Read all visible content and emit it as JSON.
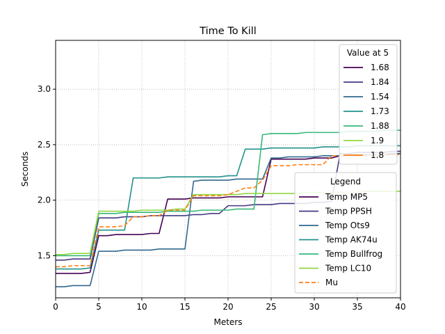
{
  "chart_data": {
    "type": "line",
    "title": "Time To Kill",
    "xlabel": "Meters",
    "ylabel": "Seconds",
    "xlim": [
      0,
      40
    ],
    "ylim": [
      1.12,
      3.44
    ],
    "xticks": [
      0,
      5,
      10,
      15,
      20,
      25,
      30,
      35,
      40
    ],
    "yticks": [
      1.5,
      2.0,
      2.5,
      3.0
    ],
    "ytick_labels": [
      "1.5",
      "2.0",
      "2.5",
      "3.0"
    ],
    "grid": true,
    "x": [
      0,
      1,
      2,
      3,
      4,
      5,
      6,
      7,
      8,
      9,
      10,
      11,
      12,
      13,
      14,
      15,
      16,
      17,
      18,
      19,
      20,
      21,
      22,
      23,
      24,
      25,
      26,
      27,
      28,
      29,
      30,
      31,
      32,
      33,
      34,
      35,
      36,
      37,
      38,
      39,
      40
    ],
    "series": [
      {
        "name": "Temp MP5",
        "color": "#440154",
        "dash": "solid",
        "values": [
          1.34,
          1.34,
          1.34,
          1.34,
          1.35,
          1.68,
          1.68,
          1.69,
          1.69,
          1.69,
          1.69,
          1.7,
          1.7,
          2.01,
          2.01,
          2.01,
          2.02,
          2.02,
          2.02,
          2.02,
          2.03,
          2.03,
          2.03,
          2.03,
          2.03,
          2.37,
          2.37,
          2.37,
          2.37,
          2.37,
          2.38,
          2.38,
          2.38,
          2.4,
          2.4,
          2.4,
          2.41,
          2.41,
          2.41,
          2.42,
          2.42
        ]
      },
      {
        "name": "Temp PPSH",
        "color": "#443983",
        "dash": "solid",
        "values": [
          1.46,
          1.46,
          1.47,
          1.47,
          1.47,
          1.84,
          1.84,
          1.84,
          1.85,
          1.85,
          1.85,
          1.86,
          1.86,
          1.86,
          1.86,
          1.86,
          1.87,
          1.87,
          1.88,
          1.88,
          1.95,
          1.95,
          1.95,
          1.96,
          1.96,
          1.96,
          1.97,
          1.97,
          1.97,
          1.97,
          1.98,
          1.98,
          1.99,
          2.42,
          2.42,
          2.43,
          2.43,
          2.43,
          2.43,
          2.44,
          2.44
        ]
      },
      {
        "name": "Temp Ots9",
        "color": "#31688e",
        "dash": "solid",
        "values": [
          1.22,
          1.22,
          1.23,
          1.23,
          1.23,
          1.54,
          1.54,
          1.54,
          1.55,
          1.55,
          1.55,
          1.55,
          1.56,
          1.56,
          1.56,
          1.56,
          2.17,
          2.18,
          2.18,
          2.18,
          2.18,
          2.19,
          2.19,
          2.19,
          2.19,
          2.38,
          2.38,
          2.39,
          2.39,
          2.39,
          2.39,
          2.4,
          2.4,
          2.4,
          2.41,
          2.41,
          2.41,
          2.41,
          2.41,
          2.41,
          2.42
        ]
      },
      {
        "name": "Temp AK74u",
        "color": "#21918c",
        "dash": "solid",
        "values": [
          1.38,
          1.38,
          1.38,
          1.38,
          1.39,
          1.73,
          1.73,
          1.73,
          1.73,
          2.2,
          2.2,
          2.2,
          2.2,
          2.21,
          2.21,
          2.21,
          2.21,
          2.21,
          2.21,
          2.21,
          2.22,
          2.22,
          2.46,
          2.46,
          2.46,
          2.47,
          2.47,
          2.47,
          2.47,
          2.47,
          2.47,
          2.48,
          2.48,
          2.48,
          2.48,
          2.49,
          2.49,
          2.49,
          2.49,
          2.49,
          2.49
        ]
      },
      {
        "name": "Temp Bullfrog",
        "color": "#35b779",
        "dash": "solid",
        "values": [
          1.5,
          1.5,
          1.5,
          1.5,
          1.5,
          1.88,
          1.88,
          1.88,
          1.89,
          1.89,
          1.89,
          1.89,
          1.89,
          1.9,
          1.9,
          1.9,
          1.9,
          1.91,
          1.91,
          1.91,
          1.91,
          1.92,
          1.92,
          1.92,
          2.59,
          2.6,
          2.6,
          2.6,
          2.6,
          2.61,
          2.61,
          2.61,
          2.61,
          2.61,
          2.62,
          2.62,
          2.62,
          2.62,
          2.63,
          2.63,
          2.63
        ]
      },
      {
        "name": "Temp LC10",
        "color": "#90d743",
        "dash": "solid",
        "values": [
          1.51,
          1.51,
          1.52,
          1.52,
          1.52,
          1.9,
          1.9,
          1.9,
          1.9,
          1.9,
          1.91,
          1.91,
          1.91,
          1.91,
          1.92,
          1.92,
          2.05,
          2.05,
          2.05,
          2.05,
          2.05,
          2.05,
          2.06,
          2.06,
          2.06,
          2.06,
          2.06,
          2.06,
          2.06,
          2.07,
          2.07,
          2.07,
          2.07,
          2.07,
          2.07,
          2.07,
          2.08,
          2.08,
          2.08,
          2.08,
          2.08
        ]
      },
      {
        "name": "Mu",
        "color": "#ff7f0e",
        "dash": "dashed",
        "values": [
          1.4,
          1.4,
          1.41,
          1.41,
          1.41,
          1.76,
          1.76,
          1.76,
          1.77,
          1.85,
          1.85,
          1.86,
          1.86,
          1.91,
          1.91,
          1.91,
          2.04,
          2.04,
          2.04,
          2.04,
          2.05,
          2.08,
          2.11,
          2.11,
          2.18,
          2.31,
          2.31,
          2.31,
          2.32,
          2.32,
          2.32,
          2.32,
          2.4,
          2.4,
          2.4,
          2.4,
          2.4,
          2.41,
          2.41,
          2.41,
          2.41
        ]
      }
    ],
    "value_legend": {
      "title": "Value at 5",
      "entries": [
        {
          "label": "1.68",
          "color": "#440154"
        },
        {
          "label": "1.84",
          "color": "#443983"
        },
        {
          "label": "1.54",
          "color": "#31688e"
        },
        {
          "label": "1.73",
          "color": "#21918c"
        },
        {
          "label": "1.88",
          "color": "#35b779"
        },
        {
          "label": "1.9",
          "color": "#90d743"
        },
        {
          "label": "1.8",
          "color": "#ff7f0e"
        }
      ],
      "placement": "top-right"
    },
    "legend": {
      "title": "Legend",
      "placement": "center-right"
    }
  }
}
